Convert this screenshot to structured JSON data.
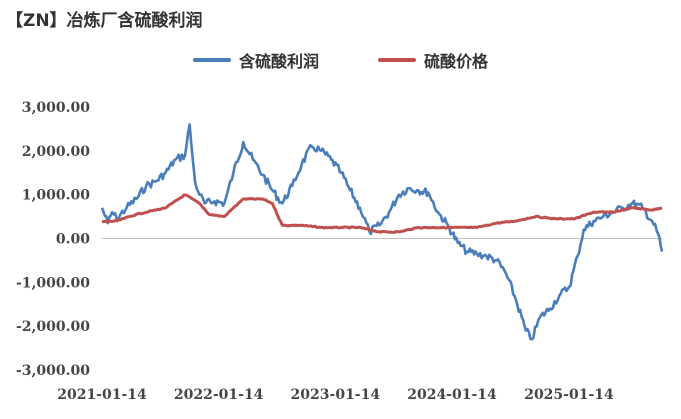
{
  "title": "【ZN】冶炼厂含硫酸利润",
  "chart_data": {
    "type": "line",
    "title": "【ZN】冶炼厂含硫酸利润",
    "xlabel": "",
    "ylabel": "",
    "ylim": [
      -3000,
      3000
    ],
    "y_ticks": [
      "3,000.00",
      "2,000.00",
      "1,000.00",
      "0.00",
      "-1,000.00",
      "-2,000.00",
      "-3,000.00"
    ],
    "x_ticks": [
      "2021-01-14",
      "2022-01-14",
      "2023-01-14",
      "2024-01-14",
      "2025-01-14"
    ],
    "x_range": [
      "2021-01-14",
      "2025-11-01"
    ],
    "grid": false,
    "legend_position": "top",
    "series": [
      {
        "name": "含硫酸利润",
        "color": "#4a7ebb",
        "points": [
          [
            "2021-01-14",
            700
          ],
          [
            "2021-02-01",
            350
          ],
          [
            "2021-02-15",
            600
          ],
          [
            "2021-03-01",
            450
          ],
          [
            "2021-04-01",
            700
          ],
          [
            "2021-05-01",
            900
          ],
          [
            "2021-06-01",
            1200
          ],
          [
            "2021-07-01",
            1300
          ],
          [
            "2021-08-01",
            1500
          ],
          [
            "2021-09-01",
            1800
          ],
          [
            "2021-10-01",
            1900
          ],
          [
            "2021-10-15",
            2600
          ],
          [
            "2021-10-25",
            1800
          ],
          [
            "2021-11-01",
            1300
          ],
          [
            "2021-11-15",
            1000
          ],
          [
            "2021-12-01",
            800
          ],
          [
            "2022-01-01",
            850
          ],
          [
            "2022-02-01",
            800
          ],
          [
            "2022-03-01",
            1500
          ],
          [
            "2022-04-01",
            2200
          ],
          [
            "2022-05-01",
            1800
          ],
          [
            "2022-06-01",
            1450
          ],
          [
            "2022-07-01",
            1100
          ],
          [
            "2022-08-01",
            800
          ],
          [
            "2022-09-01",
            1200
          ],
          [
            "2022-10-01",
            1700
          ],
          [
            "2022-11-01",
            2100
          ],
          [
            "2022-12-01",
            2000
          ],
          [
            "2023-01-01",
            1800
          ],
          [
            "2023-02-01",
            1500
          ],
          [
            "2023-03-01",
            1100
          ],
          [
            "2023-04-01",
            700
          ],
          [
            "2023-05-01",
            150
          ],
          [
            "2023-06-01",
            300
          ],
          [
            "2023-07-01",
            600
          ],
          [
            "2023-08-01",
            1000
          ],
          [
            "2023-09-01",
            1150
          ],
          [
            "2023-10-01",
            1100
          ],
          [
            "2023-11-01",
            1050
          ],
          [
            "2023-12-01",
            600
          ],
          [
            "2024-01-01",
            300
          ],
          [
            "2024-02-01",
            -100
          ],
          [
            "2024-03-01",
            -300
          ],
          [
            "2024-04-01",
            -350
          ],
          [
            "2024-05-01",
            -400
          ],
          [
            "2024-06-01",
            -500
          ],
          [
            "2024-07-01",
            -800
          ],
          [
            "2024-08-01",
            -1400
          ],
          [
            "2024-09-01",
            -2100
          ],
          [
            "2024-09-20",
            -2300
          ],
          [
            "2024-10-15",
            -1800
          ],
          [
            "2024-11-15",
            -1600
          ],
          [
            "2024-12-15",
            -1300
          ],
          [
            "2025-01-15",
            -1100
          ],
          [
            "2025-02-10",
            -400
          ],
          [
            "2025-03-01",
            200
          ],
          [
            "2025-04-01",
            400
          ],
          [
            "2025-05-01",
            500
          ],
          [
            "2025-06-01",
            600
          ],
          [
            "2025-07-01",
            700
          ],
          [
            "2025-08-01",
            800
          ],
          [
            "2025-09-01",
            700
          ],
          [
            "2025-10-01",
            400
          ],
          [
            "2025-10-20",
            100
          ],
          [
            "2025-11-01",
            -300
          ]
        ]
      },
      {
        "name": "硫酸价格",
        "color": "#c0504d",
        "points": [
          [
            "2021-01-14",
            380
          ],
          [
            "2021-03-01",
            400
          ],
          [
            "2021-05-01",
            550
          ],
          [
            "2021-08-01",
            700
          ],
          [
            "2021-10-01",
            1000
          ],
          [
            "2021-11-15",
            800
          ],
          [
            "2021-12-15",
            550
          ],
          [
            "2022-02-01",
            500
          ],
          [
            "2022-03-01",
            700
          ],
          [
            "2022-04-01",
            900
          ],
          [
            "2022-06-01",
            900
          ],
          [
            "2022-07-01",
            800
          ],
          [
            "2022-08-01",
            300
          ],
          [
            "2022-10-01",
            300
          ],
          [
            "2022-12-01",
            250
          ],
          [
            "2023-02-01",
            250
          ],
          [
            "2023-04-01",
            250
          ],
          [
            "2023-06-01",
            150
          ],
          [
            "2023-08-01",
            150
          ],
          [
            "2023-10-01",
            250
          ],
          [
            "2024-01-01",
            250
          ],
          [
            "2024-04-01",
            250
          ],
          [
            "2024-06-01",
            350
          ],
          [
            "2024-08-01",
            400
          ],
          [
            "2024-10-01",
            500
          ],
          [
            "2024-12-01",
            450
          ],
          [
            "2025-02-01",
            450
          ],
          [
            "2025-04-01",
            600
          ],
          [
            "2025-06-01",
            600
          ],
          [
            "2025-08-01",
            700
          ],
          [
            "2025-10-01",
            650
          ],
          [
            "2025-11-01",
            700
          ]
        ]
      }
    ]
  }
}
